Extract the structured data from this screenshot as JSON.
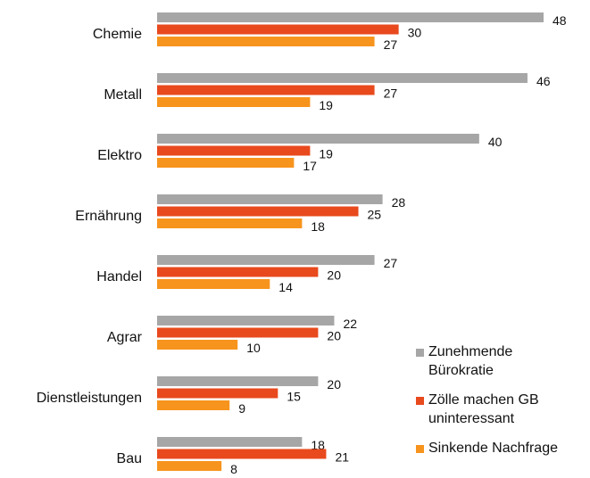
{
  "chart_data": {
    "type": "bar",
    "orientation": "horizontal",
    "categories": [
      "Chemie",
      "Metall",
      "Elektro",
      "Ernährung",
      "Handel",
      "Agrar",
      "Dienstleistungen",
      "Bau"
    ],
    "series": [
      {
        "name": "Zunehmende Bürokratie",
        "color": "#a6a6a6",
        "values": [
          48,
          46,
          40,
          28,
          27,
          22,
          20,
          18
        ]
      },
      {
        "name": "Zölle machen GB uninteressant",
        "color": "#e8491d",
        "values": [
          30,
          27,
          19,
          25,
          20,
          20,
          15,
          21
        ]
      },
      {
        "name": "Sinkende Nachfrage",
        "color": "#f7941d",
        "values": [
          27,
          19,
          17,
          18,
          14,
          10,
          9,
          8
        ]
      }
    ],
    "legend": "bottom-right"
  }
}
